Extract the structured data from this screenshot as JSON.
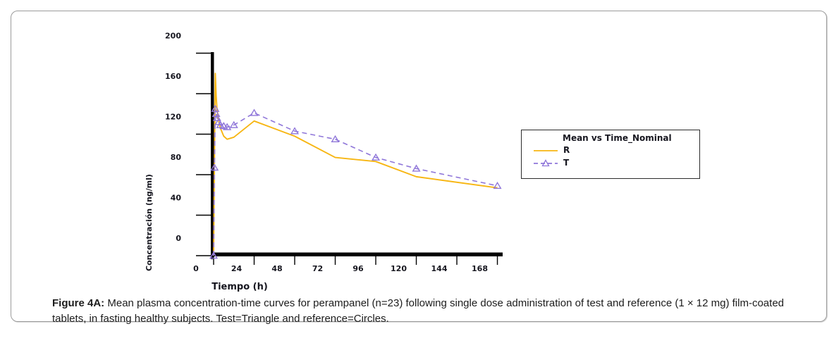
{
  "figure": {
    "caption_prefix": "Figure 4A:",
    "caption_line1": " Mean plasma concentration-time curves for perampanel (n=23) following single dose administration of test and reference (1 × 12 mg) film-coated",
    "caption_line2": "tablets, in fasting healthy subjects. Test=Triangle and reference=Circles."
  },
  "chart_data": {
    "type": "line",
    "legend_title": "Mean vs Time_Nominal",
    "xlabel": "Tiempo (h)",
    "ylabel": "Concentración (ng/ml)",
    "xlim": [
      0,
      172
    ],
    "ylim": [
      0,
      204
    ],
    "xticks": [
      0,
      24,
      48,
      72,
      96,
      120,
      144,
      168
    ],
    "yticks": [
      0,
      40,
      80,
      120,
      160,
      200
    ],
    "grid": false,
    "legend_position": "right-outside",
    "colors": {
      "reference_line": "#F7B613",
      "test_line": "#8F76D9",
      "axis": "#000000",
      "axis_text": "#16161F"
    },
    "series": [
      {
        "name": "R",
        "line": "solid",
        "marker": "none",
        "color": "#F7B613",
        "x": [
          0,
          0.5,
          1,
          1.5,
          2,
          3,
          4,
          6,
          8,
          12,
          24,
          48,
          72,
          96,
          120,
          168
        ],
        "y": [
          0,
          95,
          180,
          158,
          145,
          133,
          126,
          118,
          115,
          117,
          133,
          118,
          97,
          93,
          78,
          67
        ]
      },
      {
        "name": "T",
        "line": "dashed",
        "marker": "open-triangle",
        "color": "#8F76D9",
        "x": [
          0,
          0.5,
          1,
          1.5,
          2,
          3,
          4,
          6,
          8,
          12,
          24,
          48,
          72,
          96,
          120,
          168
        ],
        "y": [
          0,
          87,
          145,
          140,
          136,
          132,
          129,
          128,
          127,
          129,
          141,
          123,
          115,
          97,
          86,
          69
        ]
      }
    ]
  }
}
